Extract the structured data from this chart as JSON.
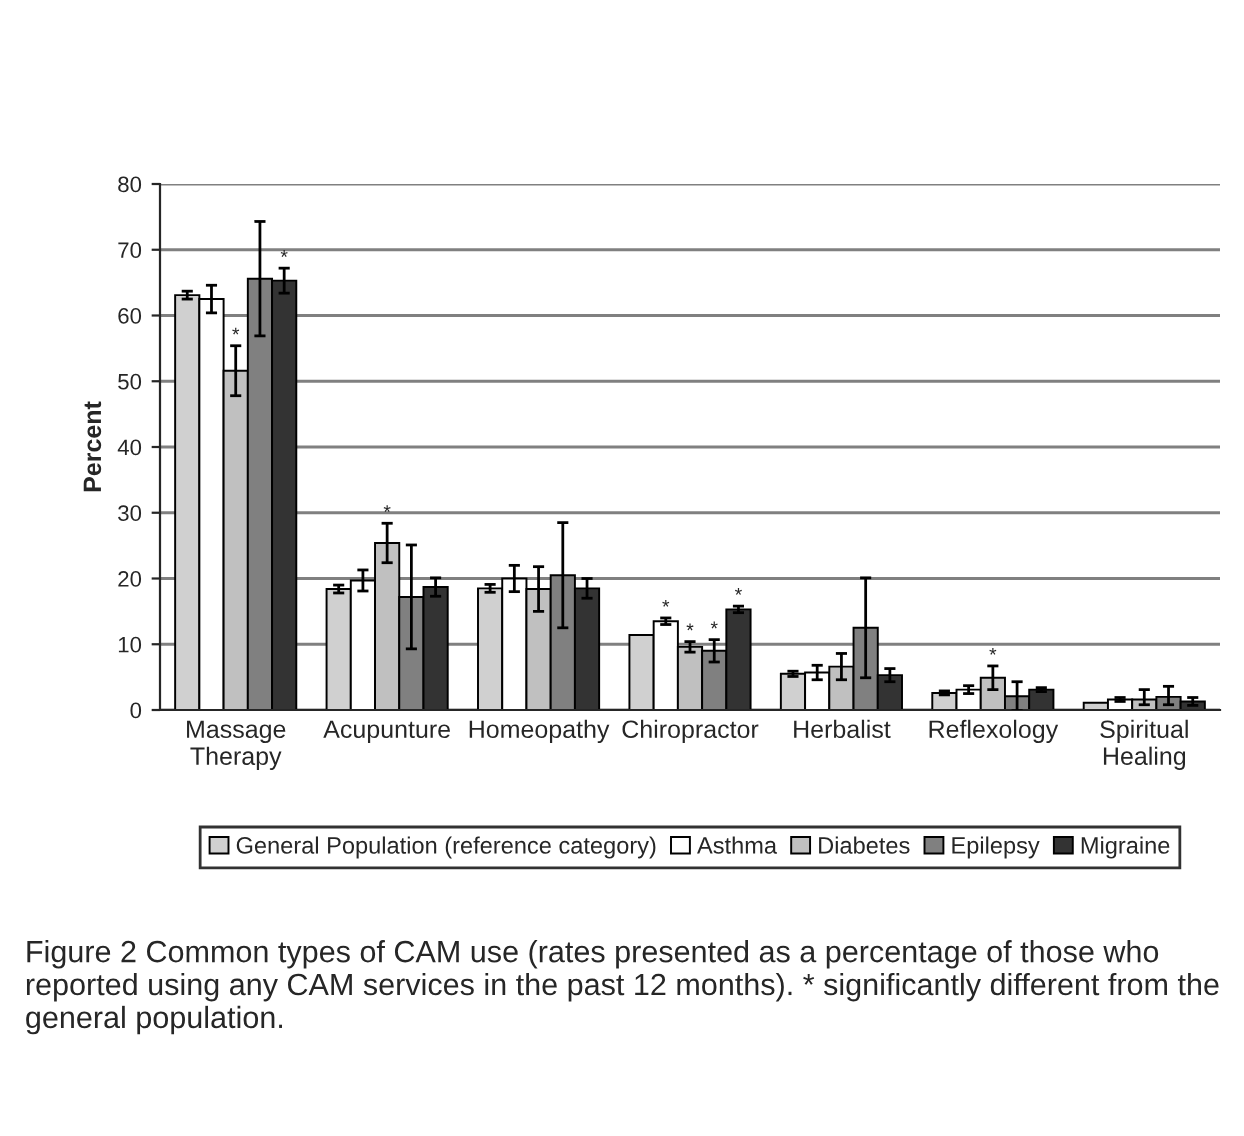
{
  "chart_data": {
    "type": "bar",
    "ylabel": "Percent",
    "categories": [
      "Massage\nTherapy",
      "Acupunture",
      "Homeopathy",
      "Chiropractor",
      "Herbalist",
      "Reflexology",
      "Spiritual\nHealing"
    ],
    "series": [
      {
        "name": "General Population (reference category)",
        "color": "#d0d0d0",
        "values": [
          63.1,
          18.4,
          18.5,
          11.4,
          5.5,
          2.6,
          1.1
        ],
        "errors": [
          0.6,
          0.6,
          0.6,
          null,
          0.4,
          0.3,
          null
        ]
      },
      {
        "name": "Asthma",
        "color": "#ffffff",
        "values": [
          62.5,
          19.7,
          20.0,
          13.5,
          5.7,
          3.1,
          1.6
        ],
        "errors": [
          2.1,
          1.6,
          2.0,
          0.5,
          1.1,
          0.6,
          0.3
        ],
        "value_labels": [
          null,
          null,
          null,
          "*",
          null,
          null,
          null
        ]
      },
      {
        "name": "Diabetes",
        "color": "#c0c0c0",
        "values": [
          51.6,
          25.4,
          18.4,
          9.6,
          6.6,
          4.9,
          1.6
        ],
        "errors": [
          3.8,
          3.0,
          3.4,
          0.8,
          2.0,
          1.8,
          [
            0.8,
            3.1
          ]
        ],
        "value_labels": [
          "*",
          "*",
          null,
          "*",
          null,
          "*",
          null
        ]
      },
      {
        "name": "Epilepsy",
        "color": "#808080",
        "values": [
          65.6,
          17.2,
          20.5,
          9.0,
          12.5,
          2.1,
          2.0
        ],
        "errors": [
          8.7,
          7.9,
          8.0,
          1.7,
          7.6,
          2.2,
          [
            0.8,
            3.6
          ]
        ],
        "value_labels": [
          null,
          null,
          null,
          "*",
          null,
          null,
          null
        ]
      },
      {
        "name": "Migraine",
        "color": "#333333",
        "values": [
          65.3,
          18.7,
          18.5,
          15.3,
          5.3,
          3.1,
          1.3
        ],
        "errors": [
          1.9,
          1.4,
          1.5,
          0.5,
          1.0,
          0.3,
          0.6
        ],
        "value_labels": [
          "*",
          null,
          null,
          "*",
          null,
          null,
          null
        ]
      }
    ],
    "ylim": [
      0,
      80
    ],
    "yticks": [
      0,
      10,
      20,
      30,
      40,
      50,
      60,
      70,
      80
    ],
    "grid": "y",
    "legend": "bottom",
    "annotations": [
      "Figure 2 Common types of CAM use (rates presented as a percentage of those who reported using any CAM services in the past 12 months). * significantly different from the general population."
    ]
  }
}
